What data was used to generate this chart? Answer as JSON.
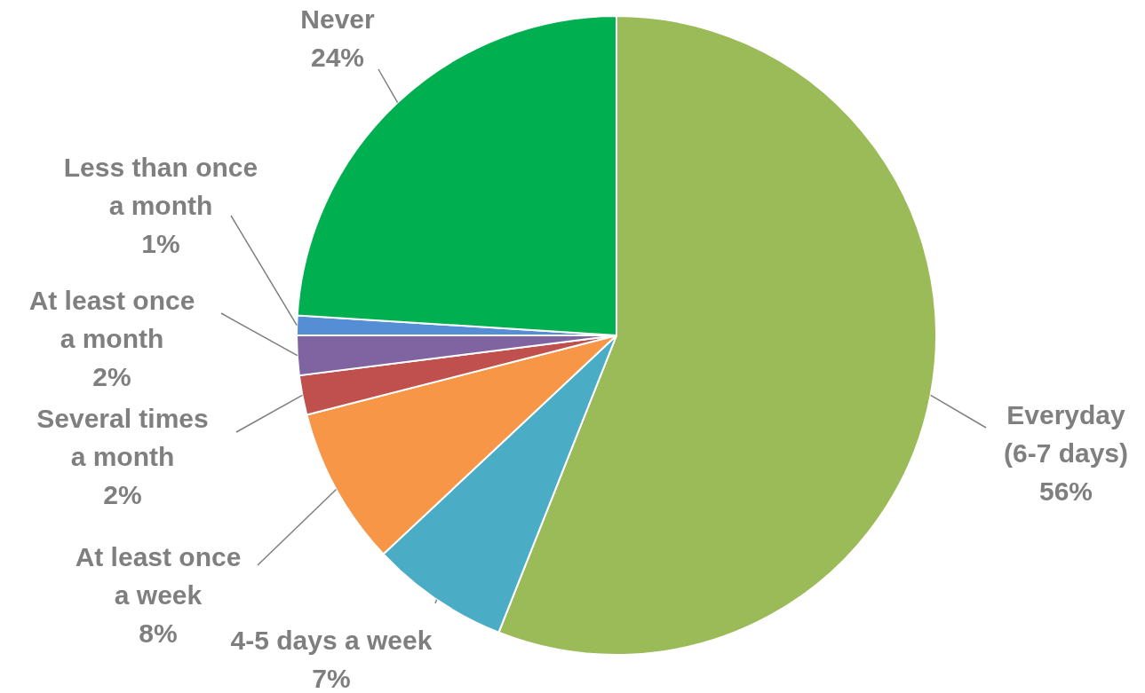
{
  "chart_data": {
    "type": "pie",
    "categories": [
      "Everyday\n(6-7 days)",
      "4-5 days a week",
      "At least once\na week",
      "Several times\na month",
      "At least once\na month",
      "Less than once\na month",
      "Never"
    ],
    "values": [
      56,
      7,
      8,
      2,
      2,
      1,
      24
    ],
    "colors": [
      "#9bbb59",
      "#4bacc6",
      "#f79646",
      "#c0504d",
      "#8064a2",
      "#558ed5",
      "#00b050"
    ],
    "value_labels": [
      "56%",
      "7%",
      "8%",
      "2%",
      "2%",
      "1%",
      "24%"
    ]
  }
}
